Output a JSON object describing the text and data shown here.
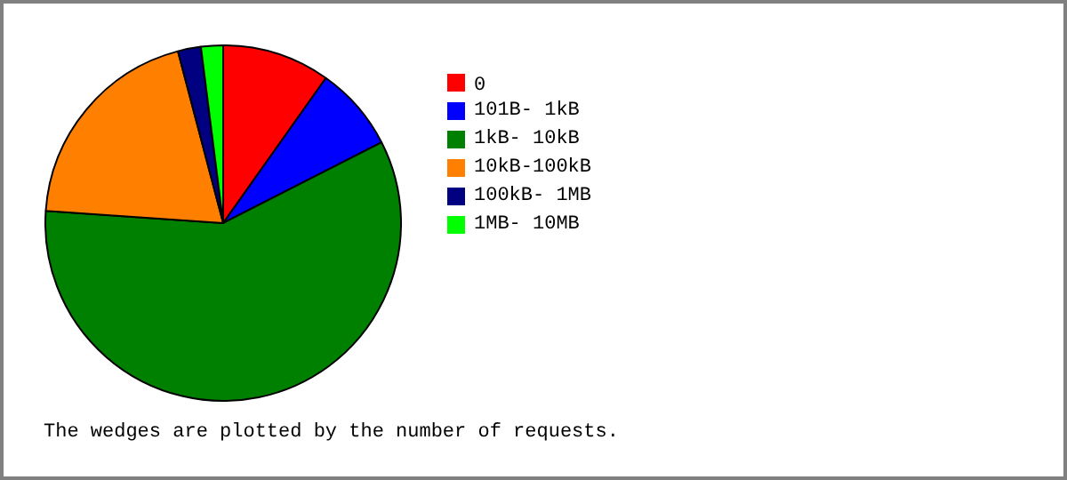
{
  "chart_data": {
    "type": "pie",
    "categories": [
      "0",
      "101B-  1kB",
      "1kB- 10kB",
      "10kB-100kB",
      "100kB-  1MB",
      "1MB- 10MB"
    ],
    "values": [
      9.8,
      7.7,
      58.6,
      19.8,
      2.1,
      2.0
    ],
    "colors": [
      "#ff0000",
      "#0000ff",
      "#008000",
      "#ff8000",
      "#000080",
      "#00ff00"
    ],
    "legend": "right",
    "annotations": [
      "The wedges are plotted by the number of requests."
    ]
  }
}
